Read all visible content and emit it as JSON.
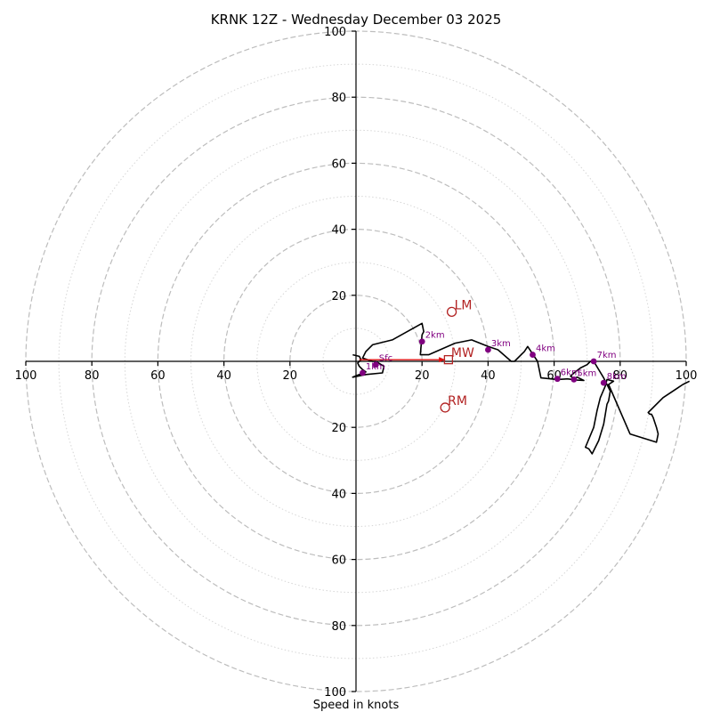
{
  "chart_data": {
    "type": "hodograph",
    "title": "KRNK 12Z - Wednesday December 03 2025",
    "xlabel": "Speed in knots",
    "units": "knots",
    "range": [
      -100,
      100
    ],
    "major_rings": [
      20,
      40,
      60,
      80,
      100
    ],
    "minor_rings": [
      10,
      30,
      50,
      70,
      90
    ],
    "x_tick_labels": [
      "100",
      "80",
      "60",
      "40",
      "20",
      "20",
      "40",
      "60",
      "80",
      "100"
    ],
    "y_tick_labels": [
      "100",
      "80",
      "60",
      "40",
      "20",
      "20",
      "40",
      "60",
      "80",
      "100"
    ],
    "trace": [
      [
        -1,
        2
      ],
      [
        1,
        1.5
      ],
      [
        1.5,
        0.5
      ],
      [
        0.5,
        -0.5
      ],
      [
        1,
        -1.5
      ],
      [
        2,
        -2.5
      ],
      [
        3,
        -3.2
      ],
      [
        -1,
        -4.8
      ],
      [
        3,
        -4
      ],
      [
        8,
        -3.5
      ],
      [
        8.5,
        -1.5
      ],
      [
        6,
        0
      ],
      [
        5,
        0
      ],
      [
        2,
        1
      ],
      [
        3,
        3
      ],
      [
        5,
        5
      ],
      [
        11,
        6.5
      ],
      [
        20,
        11.5
      ],
      [
        20.5,
        9
      ],
      [
        20,
        8
      ],
      [
        19.5,
        2
      ],
      [
        22,
        2
      ],
      [
        30,
        5.5
      ],
      [
        35,
        6.5
      ],
      [
        40,
        4.5
      ],
      [
        43,
        3.5
      ],
      [
        47,
        0
      ],
      [
        48,
        0
      ],
      [
        51,
        3
      ],
      [
        52,
        4.5
      ],
      [
        54,
        1.5
      ],
      [
        55,
        0
      ],
      [
        55.5,
        -2.5
      ],
      [
        56,
        -5
      ],
      [
        61,
        -5.5
      ],
      [
        64,
        -5.3
      ],
      [
        67,
        -5.7
      ],
      [
        69,
        -5.8
      ],
      [
        67,
        -4.8
      ],
      [
        66,
        -5.2
      ],
      [
        65,
        -4.5
      ],
      [
        66,
        -3.5
      ],
      [
        68,
        -2
      ],
      [
        70,
        -1
      ],
      [
        71,
        0
      ],
      [
        72,
        0
      ],
      [
        75,
        -5
      ],
      [
        77,
        -9
      ],
      [
        76.5,
        -12
      ],
      [
        76,
        -13
      ],
      [
        75,
        -19
      ],
      [
        73.5,
        -24
      ],
      [
        71.5,
        -28
      ],
      [
        70.5,
        -26.5
      ],
      [
        69.5,
        -26
      ],
      [
        72,
        -20
      ],
      [
        73,
        -15
      ],
      [
        74,
        -11
      ],
      [
        75.5,
        -7.5
      ],
      [
        76,
        -5.5
      ],
      [
        78,
        -6
      ],
      [
        76.5,
        -7
      ],
      [
        83,
        -22
      ],
      [
        91,
        -24.5
      ],
      [
        91.5,
        -22
      ],
      [
        91,
        -20
      ],
      [
        90,
        -17
      ],
      [
        89.5,
        -16
      ],
      [
        89,
        -16
      ],
      [
        88.5,
        -15.5
      ],
      [
        93,
        -11
      ],
      [
        99,
        -7
      ],
      [
        101,
        -6
      ]
    ],
    "height_markers": [
      {
        "label": "Sfc",
        "u": 6,
        "v": -1
      },
      {
        "label": "1km",
        "u": 2,
        "v": -3.5
      },
      {
        "label": "2km",
        "u": 20,
        "v": 6
      },
      {
        "label": "3km",
        "u": 40,
        "v": 3.5
      },
      {
        "label": "4km",
        "u": 53.5,
        "v": 2
      },
      {
        "label": "5km",
        "u": 66,
        "v": -5.5
      },
      {
        "label": "6km",
        "u": 61,
        "v": -5.3
      },
      {
        "label": "7km",
        "u": 72,
        "v": 0
      },
      {
        "label": "8km",
        "u": 75,
        "v": -6.5
      }
    ],
    "storm_motions": [
      {
        "label": "LM",
        "u": 29,
        "v": 15,
        "marker": "circle"
      },
      {
        "label": "MW",
        "u": 28,
        "v": 0.5,
        "marker": "square"
      },
      {
        "label": "RM",
        "u": 27,
        "v": -14,
        "marker": "circle"
      }
    ],
    "mw_vector": {
      "from": [
        1,
        0.5
      ],
      "to": [
        27,
        0.5
      ]
    },
    "colors": {
      "trace": "#000000",
      "height_markers": "#800080",
      "storm_motion": "#b22222",
      "mean_wind_vector": "#dd1111",
      "ring_grid": "#bdbdbd"
    }
  }
}
